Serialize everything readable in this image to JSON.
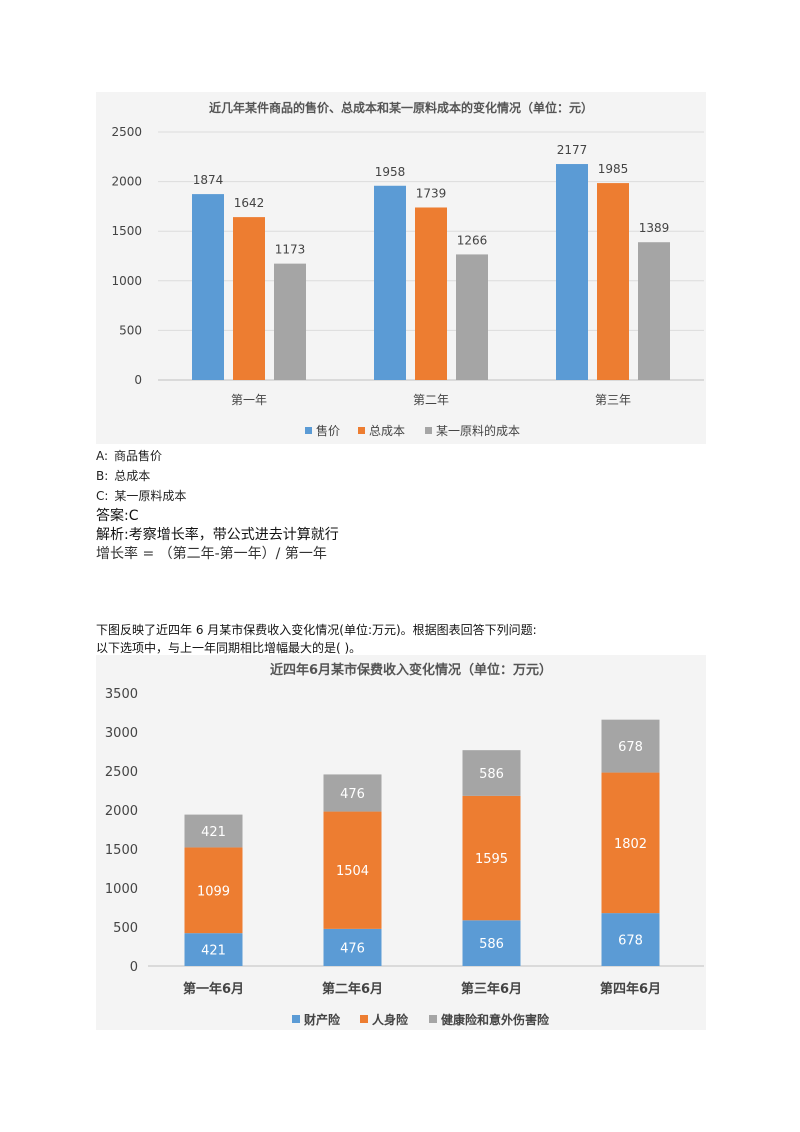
{
  "question1": {
    "options": [
      {
        "letter": "A:",
        "text": "商品售价"
      },
      {
        "letter": "B:",
        "text": "总成本"
      },
      {
        "letter": "C:",
        "text": "某一原料成本"
      }
    ],
    "answer": "答案:C",
    "analysis": "解析:考察增长率，带公式进去计算就行",
    "formula": "增长率 = （第二年-第一年）/ 第一年"
  },
  "question2": {
    "intro": "下图反映了近四年 6 月某市保费收入变化情况(单位:万元)。根据图表回答下列问题:",
    "prompt": "以下选项中，与上一年同期相比增幅最大的是( )。"
  },
  "chart_data": [
    {
      "type": "bar",
      "title": "近几年某件商品的售价、总成本和某一原料成本的变化情况（单位：元）",
      "categories": [
        "第一年",
        "第二年",
        "第三年"
      ],
      "series": [
        {
          "name": "售价",
          "color": "#5b9bd5",
          "values": [
            1874,
            1958,
            2177
          ]
        },
        {
          "name": "总成本",
          "color": "#ed7d31",
          "values": [
            1642,
            1739,
            1985
          ]
        },
        {
          "name": "某一原料的成本",
          "color": "#a5a5a5",
          "values": [
            1173,
            1266,
            1389
          ]
        }
      ],
      "yticks": [
        "0",
        "500",
        "1000",
        "1500",
        "2000",
        "2500"
      ],
      "ylim": [
        0,
        2500
      ],
      "grid": true,
      "legend": "bottom"
    },
    {
      "type": "stacked-bar",
      "title": "近四年6月某市保费收入变化情况（单位：万元）",
      "categories": [
        "第一年6月",
        "第二年6月",
        "第三年6月",
        "第四年6月"
      ],
      "series": [
        {
          "name": "财产险",
          "color": "#5b9bd5",
          "values": [
            421,
            476,
            586,
            678
          ]
        },
        {
          "name": "人身险",
          "color": "#ed7d31",
          "values": [
            1099,
            1504,
            1595,
            1802
          ]
        },
        {
          "name": "健康险和意外伤害险",
          "color": "#a5a5a5",
          "values": [
            421,
            476,
            586,
            678
          ]
        }
      ],
      "yticks": [
        "0",
        "500",
        "1000",
        "1500",
        "2000",
        "2500",
        "3000",
        "3500"
      ],
      "ylim": [
        0,
        3500
      ],
      "grid": false,
      "legend": "bottom"
    }
  ]
}
